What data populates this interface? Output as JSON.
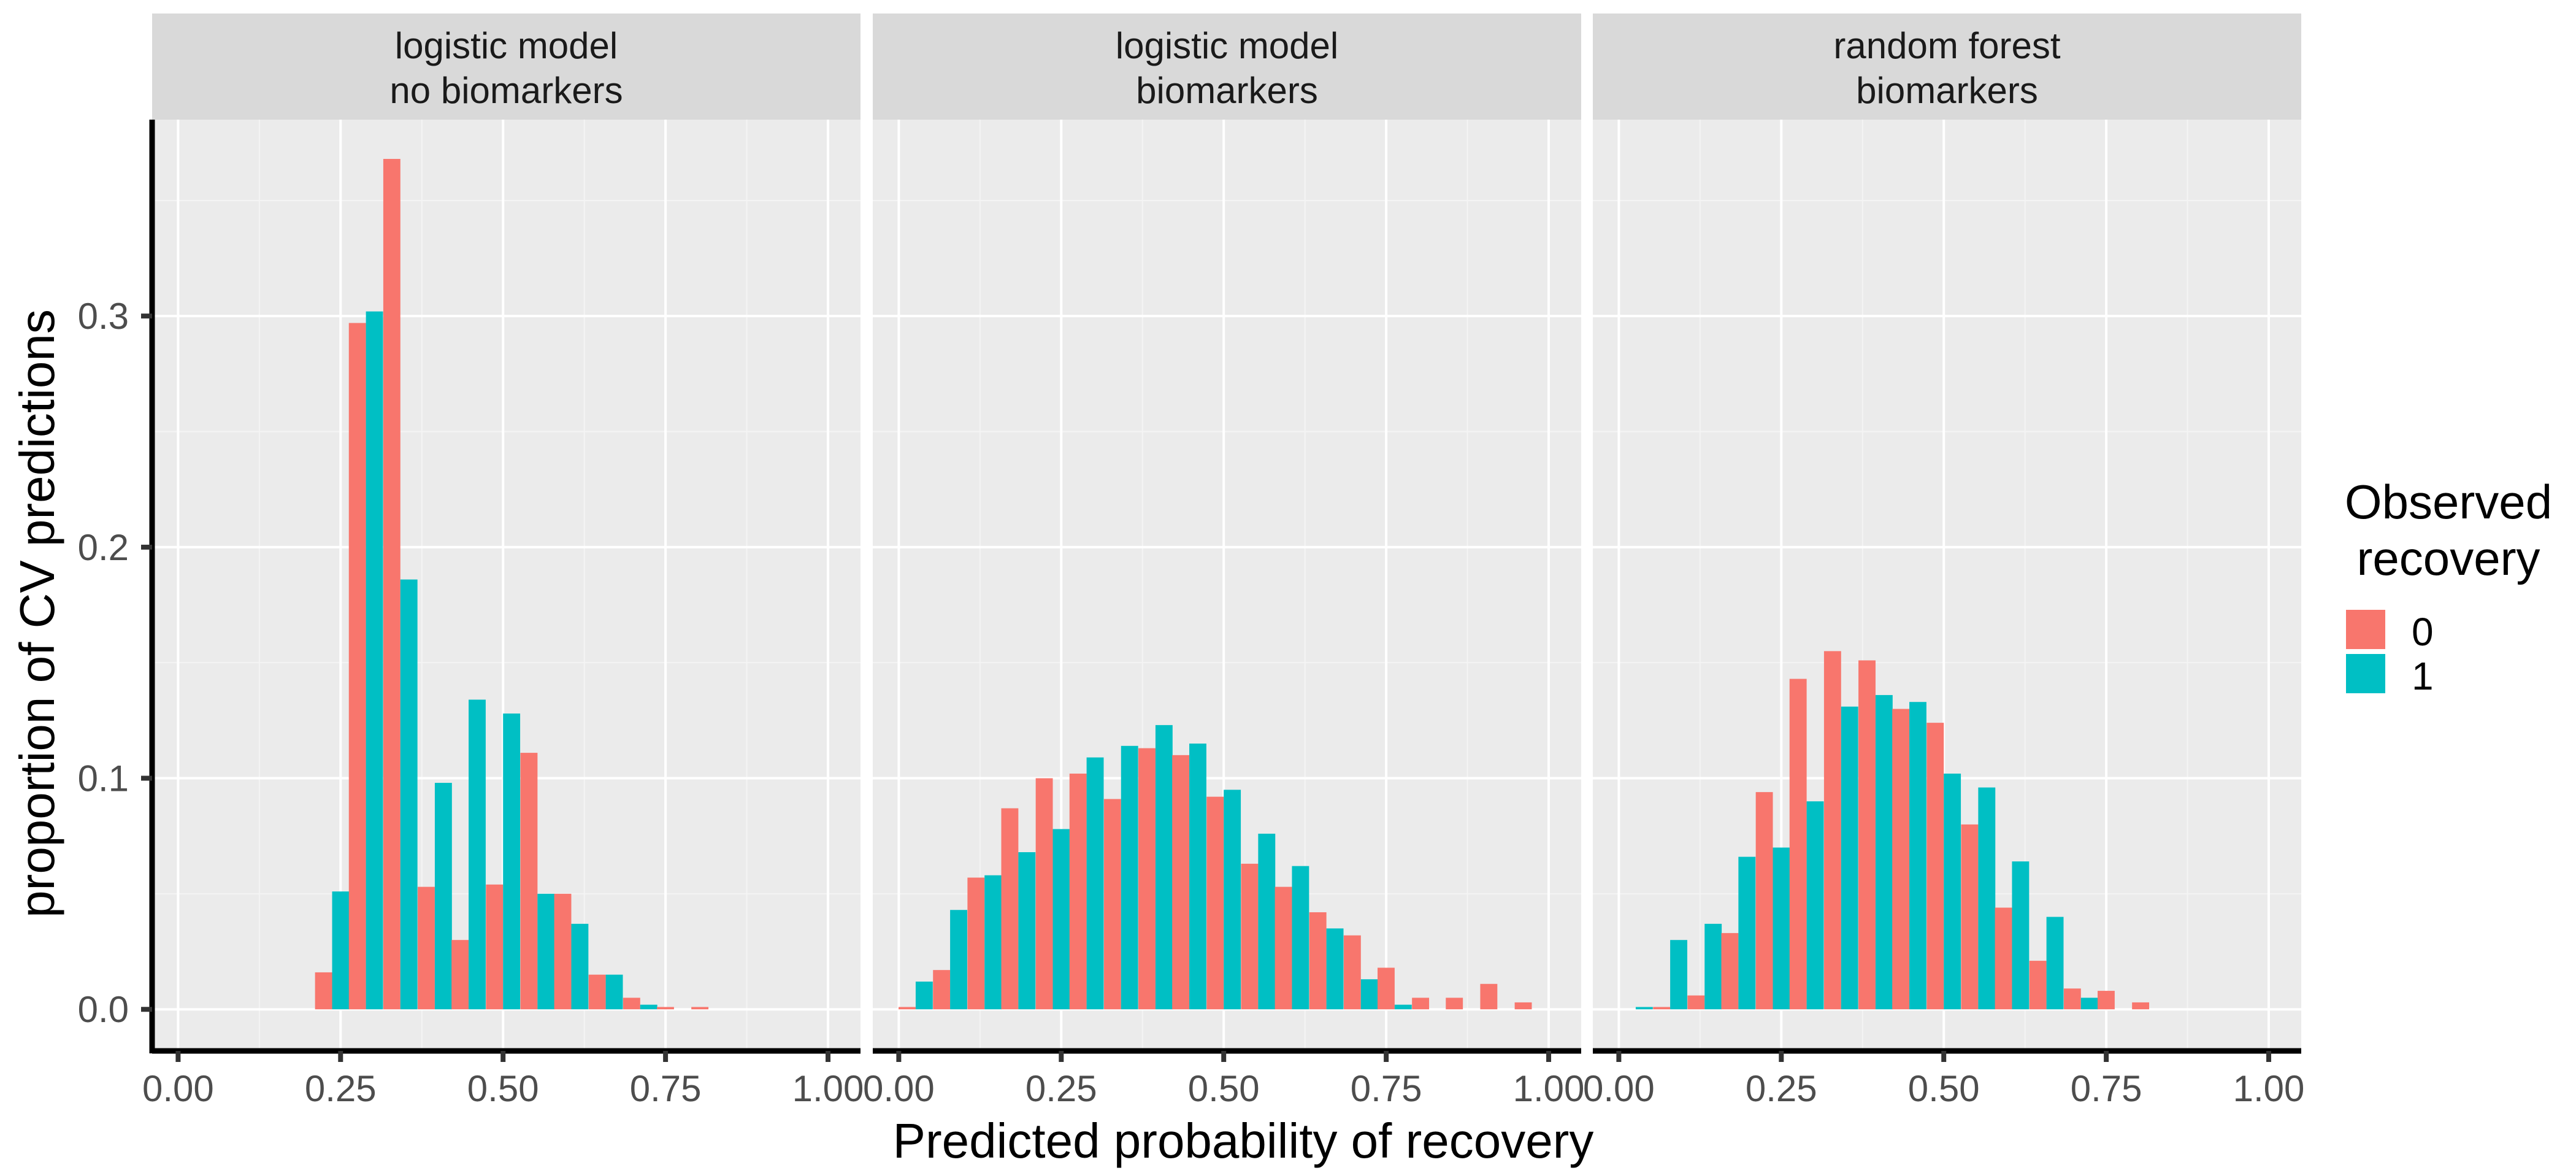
{
  "colors": {
    "observed_0": "#F8766D",
    "observed_1": "#00BFC4",
    "panel_bg": "#EBEBEB",
    "strip_bg": "#D9D9D9",
    "grid_major": "#FFFFFF",
    "grid_minor": "#F4F4F4",
    "axis_line": "#000000",
    "tick_text": "#4D4D4D",
    "title_text": "#000000"
  },
  "chart_data": {
    "type": "bar",
    "xlabel": "Predicted probability of recovery",
    "ylabel": "proportion of CV predictions",
    "xlim": [
      -0.04,
      1.05
    ],
    "ylim": [
      -0.018,
      0.385
    ],
    "x_ticks": [
      0.0,
      0.25,
      0.5,
      0.75,
      1.0
    ],
    "x_tick_labels": [
      "0.00",
      "0.25",
      "0.50",
      "0.75",
      "1.00"
    ],
    "y_ticks": [
      0.0,
      0.1,
      0.2,
      0.3
    ],
    "y_tick_labels": [
      "0.0",
      "0.1",
      "0.2",
      "0.3"
    ],
    "bin_width": 0.0526,
    "grid": true,
    "legend": {
      "title_line1": "Observed",
      "title_line2": "recovery",
      "placement": "right",
      "entries": [
        "0",
        "1"
      ]
    },
    "panels": [
      {
        "title_line1": "logistic model",
        "title_line2": "no biomarkers",
        "bins": [
          {
            "x": 0.237,
            "obs0": 0.016,
            "obs1": 0.051
          },
          {
            "x": 0.289,
            "obs0": 0.297,
            "obs1": 0.302
          },
          {
            "x": 0.342,
            "obs0": 0.368,
            "obs1": 0.186
          },
          {
            "x": 0.395,
            "obs0": 0.053,
            "obs1": 0.098
          },
          {
            "x": 0.447,
            "obs0": 0.03,
            "obs1": 0.134
          },
          {
            "x": 0.5,
            "obs0": 0.054,
            "obs1": 0.128
          },
          {
            "x": 0.553,
            "obs0": 0.111,
            "obs1": 0.05
          },
          {
            "x": 0.605,
            "obs0": 0.05,
            "obs1": 0.037
          },
          {
            "x": 0.658,
            "obs0": 0.015,
            "obs1": 0.015
          },
          {
            "x": 0.711,
            "obs0": 0.005,
            "obs1": 0.002
          },
          {
            "x": 0.763,
            "obs0": 0.001,
            "obs1": 0.0
          },
          {
            "x": 0.816,
            "obs0": 0.001,
            "obs1": 0.0
          }
        ]
      },
      {
        "title_line1": "logistic model",
        "title_line2": "biomarkers",
        "bins": [
          {
            "x": 0.026,
            "obs0": 0.001,
            "obs1": 0.012
          },
          {
            "x": 0.079,
            "obs0": 0.017,
            "obs1": 0.043
          },
          {
            "x": 0.132,
            "obs0": 0.057,
            "obs1": 0.058
          },
          {
            "x": 0.184,
            "obs0": 0.087,
            "obs1": 0.068
          },
          {
            "x": 0.237,
            "obs0": 0.1,
            "obs1": 0.078
          },
          {
            "x": 0.289,
            "obs0": 0.102,
            "obs1": 0.109
          },
          {
            "x": 0.342,
            "obs0": 0.091,
            "obs1": 0.114
          },
          {
            "x": 0.395,
            "obs0": 0.113,
            "obs1": 0.123
          },
          {
            "x": 0.447,
            "obs0": 0.11,
            "obs1": 0.115
          },
          {
            "x": 0.5,
            "obs0": 0.092,
            "obs1": 0.095
          },
          {
            "x": 0.553,
            "obs0": 0.063,
            "obs1": 0.076
          },
          {
            "x": 0.605,
            "obs0": 0.053,
            "obs1": 0.062
          },
          {
            "x": 0.658,
            "obs0": 0.042,
            "obs1": 0.035
          },
          {
            "x": 0.711,
            "obs0": 0.032,
            "obs1": 0.013
          },
          {
            "x": 0.763,
            "obs0": 0.018,
            "obs1": 0.002
          },
          {
            "x": 0.816,
            "obs0": 0.005,
            "obs1": 0.0
          },
          {
            "x": 0.868,
            "obs0": 0.005,
            "obs1": 0.0
          },
          {
            "x": 0.921,
            "obs0": 0.011,
            "obs1": 0.0
          },
          {
            "x": 0.974,
            "obs0": 0.003,
            "obs1": 0.0
          }
        ]
      },
      {
        "title_line1": "random forest",
        "title_line2": "biomarkers",
        "bins": [
          {
            "x": 0.026,
            "obs0": 0.0,
            "obs1": 0.001
          },
          {
            "x": 0.079,
            "obs0": 0.001,
            "obs1": 0.03
          },
          {
            "x": 0.132,
            "obs0": 0.006,
            "obs1": 0.037
          },
          {
            "x": 0.184,
            "obs0": 0.033,
            "obs1": 0.066
          },
          {
            "x": 0.237,
            "obs0": 0.094,
            "obs1": 0.07
          },
          {
            "x": 0.289,
            "obs0": 0.143,
            "obs1": 0.09
          },
          {
            "x": 0.342,
            "obs0": 0.155,
            "obs1": 0.131
          },
          {
            "x": 0.395,
            "obs0": 0.151,
            "obs1": 0.136
          },
          {
            "x": 0.447,
            "obs0": 0.13,
            "obs1": 0.133
          },
          {
            "x": 0.5,
            "obs0": 0.124,
            "obs1": 0.102
          },
          {
            "x": 0.553,
            "obs0": 0.08,
            "obs1": 0.096
          },
          {
            "x": 0.605,
            "obs0": 0.044,
            "obs1": 0.064
          },
          {
            "x": 0.658,
            "obs0": 0.021,
            "obs1": 0.04
          },
          {
            "x": 0.711,
            "obs0": 0.009,
            "obs1": 0.005
          },
          {
            "x": 0.763,
            "obs0": 0.008,
            "obs1": 0.0
          },
          {
            "x": 0.816,
            "obs0": 0.003,
            "obs1": 0.0
          }
        ]
      }
    ]
  }
}
